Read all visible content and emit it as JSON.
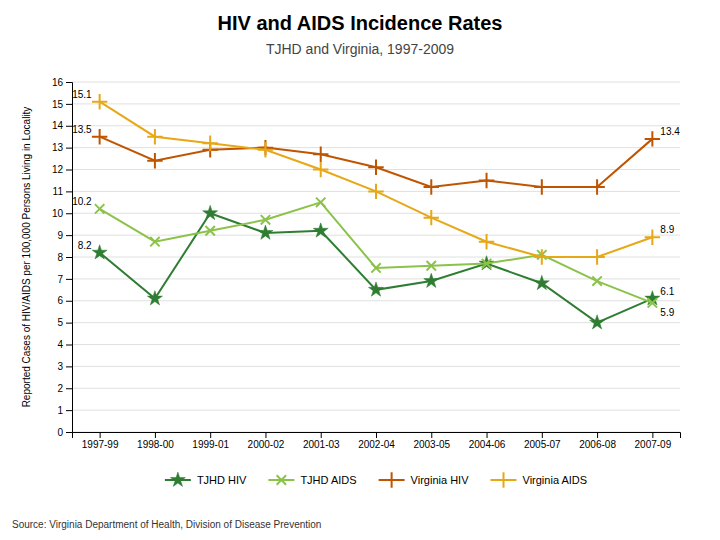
{
  "chart_data": {
    "type": "line",
    "title": "HIV and AIDS Incidence Rates",
    "subtitle": "TJHD and Virginia, 1997-2009",
    "ylabel": "Reported Cases of HIV/AIDS per 100,000 Persons Living in Locality",
    "source": "Source: Virginia Department of Health, Division of Disease Prevention",
    "categories": [
      "1997-99",
      "1998-00",
      "1999-01",
      "2000-02",
      "2001-03",
      "2002-04",
      "2003-05",
      "2004-06",
      "2005-07",
      "2006-08",
      "2007-09"
    ],
    "series": [
      {
        "name": "TJHD HIV",
        "color": "#2E7D32",
        "marker": "star",
        "values": [
          8.2,
          6.1,
          10.0,
          9.1,
          9.2,
          6.5,
          6.9,
          7.7,
          6.8,
          5.0,
          6.1
        ]
      },
      {
        "name": "TJHD AIDS",
        "color": "#8BC34A",
        "marker": "x",
        "values": [
          10.2,
          8.7,
          9.2,
          9.7,
          10.5,
          7.5,
          7.6,
          7.7,
          8.1,
          6.9,
          5.9
        ]
      },
      {
        "name": "Virginia HIV",
        "color": "#BF5500",
        "marker": "plus",
        "values": [
          13.5,
          12.4,
          12.9,
          13.0,
          12.7,
          12.1,
          11.2,
          11.5,
          11.2,
          11.2,
          13.4
        ]
      },
      {
        "name": "Virginia AIDS",
        "color": "#E6A817",
        "marker": "plus",
        "values": [
          15.1,
          13.5,
          13.2,
          12.9,
          12.0,
          11.0,
          9.8,
          8.7,
          8.0,
          8.0,
          8.9
        ]
      }
    ],
    "ylim": [
      0,
      16
    ],
    "yticks": [
      0,
      1,
      2,
      3,
      4,
      5,
      6,
      7,
      8,
      9,
      10,
      11,
      12,
      13,
      14,
      15,
      16
    ],
    "grid": true,
    "legend": "bottom",
    "annotations": [
      {
        "text": "15.1",
        "x": "1997-99",
        "y": 15.1
      },
      {
        "text": "13.5",
        "x": "1997-99",
        "y": 13.5
      },
      {
        "text": "10.2",
        "x": "1997-99",
        "y": 10.2
      },
      {
        "text": "8.2",
        "x": "1997-99",
        "y": 8.2
      },
      {
        "text": "13.4",
        "x": "2007-09",
        "y": 13.4
      },
      {
        "text": "8.9",
        "x": "2007-09",
        "y": 8.9
      },
      {
        "text": "6.1",
        "x": "2007-09",
        "y": 6.1
      },
      {
        "text": "5.9",
        "x": "2007-09",
        "y": 5.9
      }
    ]
  }
}
